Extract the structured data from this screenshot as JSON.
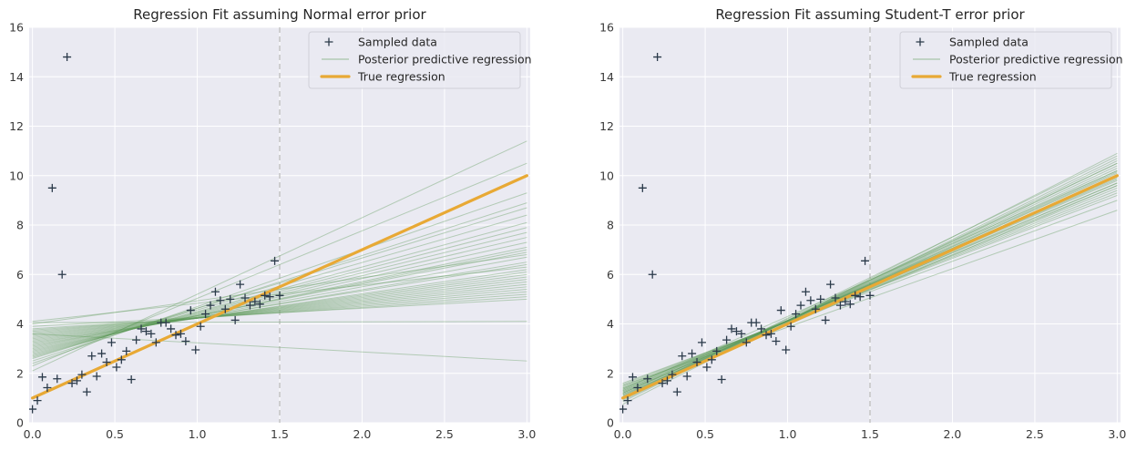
{
  "colors": {
    "background": "#eaeaf2",
    "grid": "#ffffff",
    "data_marker": "#2b3a4a",
    "posterior_line": "#5e9c5a",
    "true_line": "#e8a935",
    "vline": "#c4c4c4"
  },
  "chart_data": [
    {
      "type": "scatter",
      "title": "Regression Fit assuming Normal error prior",
      "xlim": [
        -0.02,
        3.02
      ],
      "ylim": [
        0,
        16
      ],
      "xticks": [
        0.0,
        0.5,
        1.0,
        1.5,
        2.0,
        2.5,
        3.0
      ],
      "xtick_labels": [
        "0.0",
        "0.5",
        "1.0",
        "1.5",
        "2.0",
        "2.5",
        "3.0"
      ],
      "yticks": [
        0,
        2,
        4,
        6,
        8,
        10,
        12,
        14,
        16
      ],
      "ytick_labels": [
        "0",
        "2",
        "4",
        "6",
        "8",
        "10",
        "12",
        "14",
        "16"
      ],
      "grid": true,
      "legend_position": "top-right",
      "legend": [
        "Sampled data",
        "Posterior predictive regression",
        "True regression"
      ],
      "vline_x": 1.5,
      "sampled_data": {
        "x": [
          0.0,
          0.03,
          0.06,
          0.09,
          0.12,
          0.15,
          0.18,
          0.21,
          0.24,
          0.27,
          0.3,
          0.33,
          0.36,
          0.39,
          0.42,
          0.45,
          0.48,
          0.51,
          0.54,
          0.57,
          0.6,
          0.63,
          0.66,
          0.69,
          0.72,
          0.75,
          0.78,
          0.81,
          0.84,
          0.87,
          0.9,
          0.93,
          0.96,
          0.99,
          1.02,
          1.05,
          1.08,
          1.11,
          1.14,
          1.17,
          1.2,
          1.23,
          1.26,
          1.29,
          1.32,
          1.35,
          1.38,
          1.41,
          1.44,
          1.47,
          1.5
        ],
        "y": [
          0.55,
          0.9,
          1.85,
          1.42,
          9.5,
          1.78,
          6.0,
          14.8,
          1.6,
          1.7,
          1.95,
          1.25,
          2.7,
          1.88,
          2.8,
          2.45,
          3.25,
          2.25,
          2.55,
          2.9,
          1.75,
          3.35,
          3.8,
          3.7,
          3.6,
          3.25,
          4.05,
          4.05,
          3.8,
          3.55,
          3.6,
          3.3,
          4.55,
          2.95,
          3.9,
          4.4,
          4.75,
          5.3,
          4.95,
          4.6,
          5.0,
          4.15,
          5.6,
          5.05,
          4.75,
          4.9,
          4.8,
          5.15,
          5.1,
          6.55,
          5.15
        ]
      },
      "true_regression": {
        "intercept": 1.0,
        "slope": 3.0
      },
      "posterior_lines": {
        "x_range": [
          0.0,
          3.0
        ],
        "y_at_start": [
          2.1,
          2.3,
          2.4,
          2.5,
          2.6,
          2.65,
          2.7,
          2.75,
          2.8,
          2.85,
          2.9,
          2.95,
          3.0,
          3.05,
          3.1,
          3.15,
          3.2,
          3.25,
          3.3,
          3.35,
          3.4,
          3.45,
          3.5,
          3.55,
          3.6,
          3.65,
          3.7,
          3.75,
          3.8,
          3.9,
          4.0,
          4.1,
          4.05,
          3.6
        ],
        "y_at_end": [
          11.4,
          10.5,
          9.3,
          8.9,
          8.7,
          8.4,
          8.1,
          7.9,
          7.7,
          7.5,
          7.3,
          7.1,
          7.0,
          6.9,
          6.7,
          6.5,
          6.4,
          6.2,
          6.1,
          6.0,
          5.9,
          5.8,
          5.7,
          5.6,
          5.5,
          5.4,
          5.3,
          5.2,
          5.1,
          5.0,
          6.8,
          6.3,
          4.1,
          2.5
        ]
      }
    },
    {
      "type": "scatter",
      "title": "Regression Fit assuming Student-T error prior",
      "xlim": [
        -0.02,
        3.02
      ],
      "ylim": [
        0,
        16
      ],
      "xticks": [
        0.0,
        0.5,
        1.0,
        1.5,
        2.0,
        2.5,
        3.0
      ],
      "xtick_labels": [
        "0.0",
        "0.5",
        "1.0",
        "1.5",
        "2.0",
        "2.5",
        "3.0"
      ],
      "yticks": [
        0,
        2,
        4,
        6,
        8,
        10,
        12,
        14,
        16
      ],
      "ytick_labels": [
        "0",
        "2",
        "4",
        "6",
        "8",
        "10",
        "12",
        "14",
        "16"
      ],
      "grid": true,
      "legend_position": "top-right",
      "legend": [
        "Sampled data",
        "Posterior predictive regression",
        "True regression"
      ],
      "vline_x": 1.5,
      "sampled_data": {
        "x": [
          0.0,
          0.03,
          0.06,
          0.09,
          0.12,
          0.15,
          0.18,
          0.21,
          0.24,
          0.27,
          0.3,
          0.33,
          0.36,
          0.39,
          0.42,
          0.45,
          0.48,
          0.51,
          0.54,
          0.57,
          0.6,
          0.63,
          0.66,
          0.69,
          0.72,
          0.75,
          0.78,
          0.81,
          0.84,
          0.87,
          0.9,
          0.93,
          0.96,
          0.99,
          1.02,
          1.05,
          1.08,
          1.11,
          1.14,
          1.17,
          1.2,
          1.23,
          1.26,
          1.29,
          1.32,
          1.35,
          1.38,
          1.41,
          1.44,
          1.47,
          1.5
        ],
        "y": [
          0.55,
          0.9,
          1.85,
          1.42,
          9.5,
          1.78,
          6.0,
          14.8,
          1.6,
          1.7,
          1.95,
          1.25,
          2.7,
          1.88,
          2.8,
          2.45,
          3.25,
          2.25,
          2.55,
          2.9,
          1.75,
          3.35,
          3.8,
          3.7,
          3.6,
          3.25,
          4.05,
          4.05,
          3.8,
          3.55,
          3.6,
          3.3,
          4.55,
          2.95,
          3.9,
          4.4,
          4.75,
          5.3,
          4.95,
          4.6,
          5.0,
          4.15,
          5.6,
          5.05,
          4.75,
          4.9,
          4.8,
          5.15,
          5.1,
          6.55,
          5.15
        ]
      },
      "true_regression": {
        "intercept": 1.0,
        "slope": 3.0
      },
      "posterior_lines": {
        "x_range": [
          0.0,
          3.0
        ],
        "y_at_start": [
          0.75,
          0.85,
          0.9,
          0.95,
          1.0,
          1.05,
          1.1,
          1.1,
          1.15,
          1.2,
          1.2,
          1.25,
          1.3,
          1.3,
          1.35,
          1.4,
          1.4,
          1.45,
          1.5,
          1.55,
          1.6,
          1.25,
          1.35,
          1.05,
          1.15,
          1.5,
          0.95,
          1.2
        ],
        "y_at_end": [
          10.9,
          10.7,
          10.6,
          10.5,
          10.4,
          10.3,
          10.2,
          10.15,
          10.1,
          10.0,
          9.95,
          9.9,
          9.85,
          9.8,
          9.7,
          9.6,
          9.5,
          9.4,
          9.3,
          9.2,
          9.0,
          9.7,
          10.2,
          10.5,
          9.6,
          8.6,
          10.8,
          10.0
        ]
      }
    }
  ]
}
